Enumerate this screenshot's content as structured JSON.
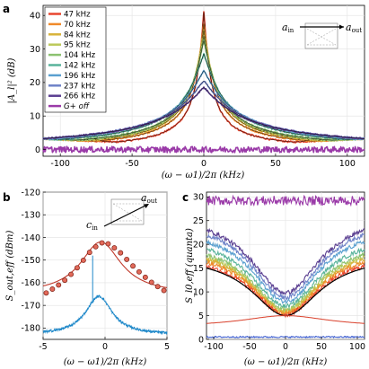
{
  "panel_labels": {
    "a": "a",
    "b": "b",
    "c": "c"
  },
  "colors": {
    "47 kHz": "#e8452e",
    "70 kHz": "#f08a2a",
    "84 kHz": "#d8b33a",
    "95 kHz": "#bcc95a",
    "104 kHz": "#8cc270",
    "142 kHz": "#58b39a",
    "196 kHz": "#5aa0d0",
    "237 kHz": "#6f83c8",
    "266 kHz": "#5b3f91",
    "G+ off": "#9a3aa8",
    "theory": "#000000",
    "b_red": "#c0392b",
    "b_blue": "#1e88c9",
    "c_red": "#d9402b",
    "c_blue": "#4060d0"
  },
  "chart_data": [
    {
      "panel": "a",
      "type": "line",
      "ylabel": "|A_l|² (dB)",
      "xlabel": "(ω − ω1)/2π (kHz)",
      "xlim": [
        -112,
        112
      ],
      "ylim": [
        -2,
        43
      ],
      "xticks": [
        -100,
        -50,
        0,
        50,
        100
      ],
      "yticks": [
        0,
        10,
        20,
        30,
        40
      ],
      "tick_labels_x": [
        "-100",
        "-50",
        "0",
        "50",
        "100"
      ],
      "tick_labels_y": [
        "0",
        "10",
        "20",
        "30",
        "40"
      ],
      "legend_placement": "top-left",
      "series": [
        {
          "name": "47 kHz",
          "peak_db": 41,
          "half_width_khz": 23.5
        },
        {
          "name": "70 kHz",
          "peak_db": 37.5,
          "half_width_khz": 35
        },
        {
          "name": "84 kHz",
          "peak_db": 35.5,
          "half_width_khz": 42
        },
        {
          "name": "95 kHz",
          "peak_db": 33.8,
          "half_width_khz": 47.5
        },
        {
          "name": "104 kHz",
          "peak_db": 32.5,
          "half_width_khz": 52
        },
        {
          "name": "142 kHz",
          "peak_db": 28.5,
          "half_width_khz": 71
        },
        {
          "name": "196 kHz",
          "peak_db": 23.5,
          "half_width_khz": 98
        },
        {
          "name": "237 kHz",
          "peak_db": 20.5,
          "half_width_khz": 118
        },
        {
          "name": "266 kHz",
          "peak_db": 18.5,
          "half_width_khz": 133
        },
        {
          "name": "G+ off",
          "peak_db": 0,
          "half_width_khz": 0
        }
      ],
      "inset": {
        "input": "a_in",
        "output": "a_out"
      }
    },
    {
      "panel": "b",
      "type": "line",
      "ylabel": "S_out,eff (dBm)",
      "xlabel": "(ω − ω1)/2π (kHz)",
      "xlim": [
        -5,
        5
      ],
      "ylim": [
        -185,
        -120
      ],
      "xticks": [
        -5,
        0,
        5
      ],
      "yticks": [
        -120,
        -130,
        -140,
        -150,
        -160,
        -170,
        -180
      ],
      "tick_labels_x": [
        "-5",
        "0",
        "5"
      ],
      "tick_labels_y": [
        "-120",
        "-130",
        "-140",
        "-150",
        "-160",
        "-170",
        "-180"
      ],
      "series": [
        {
          "name": "",
          "color_key": "b_red",
          "x": [
            -4.75,
            -4.25,
            -3.75,
            -3.25,
            -2.75,
            -2.25,
            -1.75,
            -1.25,
            -0.75,
            -0.25,
            0.25,
            0.75,
            1.25,
            1.75,
            2.25,
            2.75,
            3.25,
            3.75,
            4.25,
            4.75
          ],
          "y": [
            -164.5,
            -162.8,
            -161,
            -158.9,
            -156.3,
            -153.4,
            -150.1,
            -146.6,
            -144.1,
            -142.4,
            -142.8,
            -144.6,
            -146.8,
            -149.7,
            -152.6,
            -155.2,
            -157.6,
            -159.8,
            -161.7,
            -163.4
          ]
        },
        {
          "name": "",
          "color_key": "b_blue",
          "peak_x": -0.5,
          "peak_y": -166,
          "floor_y": -183,
          "spike_x": -1.0,
          "spike_top": -148
        }
      ],
      "inset": {
        "input": "c_in",
        "output": "a_out"
      }
    },
    {
      "panel": "c",
      "type": "line",
      "ylabel": "S_l0,eff (quanta)",
      "xlabel": "(ω − ω1)/2π (kHz)",
      "xlim": [
        -110,
        110
      ],
      "ylim": [
        0,
        31
      ],
      "xticks": [
        -100,
        -50,
        0,
        50,
        100
      ],
      "yticks": [
        0,
        5,
        10,
        15,
        20,
        25,
        30
      ],
      "tick_labels_x": [
        "-100",
        "-50",
        "0",
        "50",
        "100"
      ],
      "tick_labels_y": [
        "0",
        "5",
        "10",
        "15",
        "20",
        "25",
        "30"
      ],
      "series": [
        {
          "name": "",
          "color_key": "G+ off",
          "level": 29.2
        },
        {
          "name": "",
          "color_key": "266 kHz",
          "edge": 23.0,
          "min": 9.8
        },
        {
          "name": "",
          "color_key": "237 kHz",
          "edge": 22.0,
          "min": 8.8
        },
        {
          "name": "",
          "color_key": "196 kHz",
          "edge": 20.6,
          "min": 8.0
        },
        {
          "name": "",
          "color_key": "142 kHz",
          "edge": 19.0,
          "min": 7.0
        },
        {
          "name": "",
          "color_key": "104 kHz",
          "edge": 17.8,
          "min": 6.3
        },
        {
          "name": "",
          "color_key": "95 kHz",
          "edge": 17.2,
          "min": 6.0
        },
        {
          "name": "",
          "color_key": "84 kHz",
          "edge": 16.8,
          "min": 5.8
        },
        {
          "name": "",
          "color_key": "70 kHz",
          "edge": 16.2,
          "min": 5.5
        },
        {
          "name": "",
          "color_key": "47 kHz",
          "edge": 15.4,
          "min": 5.2
        },
        {
          "name": "",
          "color_key": "theory",
          "edge": 15.0,
          "min": 5.0
        },
        {
          "name": "",
          "color_key": "c_red",
          "peak": 5.0,
          "edge": 2.6
        },
        {
          "name": "",
          "color_key": "c_blue",
          "level": 0.5
        }
      ]
    }
  ]
}
